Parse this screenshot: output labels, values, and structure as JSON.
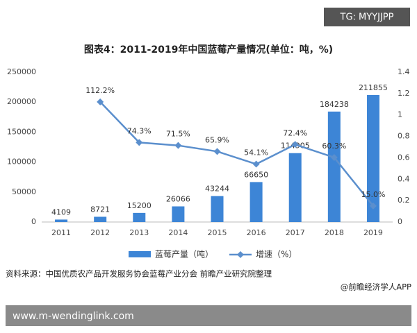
{
  "watermark_top": "TG: MYYJJPP",
  "chart_data": {
    "type": "bar-line",
    "title": "图表4：2011-2019年中国蓝莓产量情况(单位：吨，%)",
    "categories": [
      "2011",
      "2012",
      "2013",
      "2014",
      "2015",
      "2016",
      "2017",
      "2018",
      "2019"
    ],
    "series": [
      {
        "name": "蓝莓产量（吨）",
        "type": "bar",
        "color": "#3d85d6",
        "values": [
          4109,
          8721,
          15200,
          26066,
          43244,
          66650,
          114905,
          184238,
          211855
        ]
      },
      {
        "name": "增速（%）",
        "type": "line",
        "axis": "y2",
        "color": "#5b8fcd",
        "values": [
          null,
          1.122,
          0.743,
          0.715,
          0.659,
          0.541,
          0.724,
          0.603,
          0.15
        ],
        "value_labels": [
          null,
          "112.2%",
          "74.3%",
          "71.5%",
          "65.9%",
          "54.1%",
          "72.4%",
          "60.3%",
          "15.0%"
        ]
      }
    ],
    "ylim": [
      0,
      250000
    ],
    "yticks": [
      0,
      50000,
      100000,
      150000,
      200000,
      250000
    ],
    "y2lim": [
      0,
      1.4
    ],
    "y2ticks": [
      0,
      0.2,
      0.4,
      0.6,
      0.8,
      1,
      1.2,
      1.4
    ],
    "grid": false,
    "legend": "bottom"
  },
  "source": "资料来源：中国优质农产品开发服务协会蓝莓产业分会 前瞻产业研究院整理",
  "credit": "@前瞻经济学人APP",
  "footer_url": "www.m-wendinglink.com"
}
